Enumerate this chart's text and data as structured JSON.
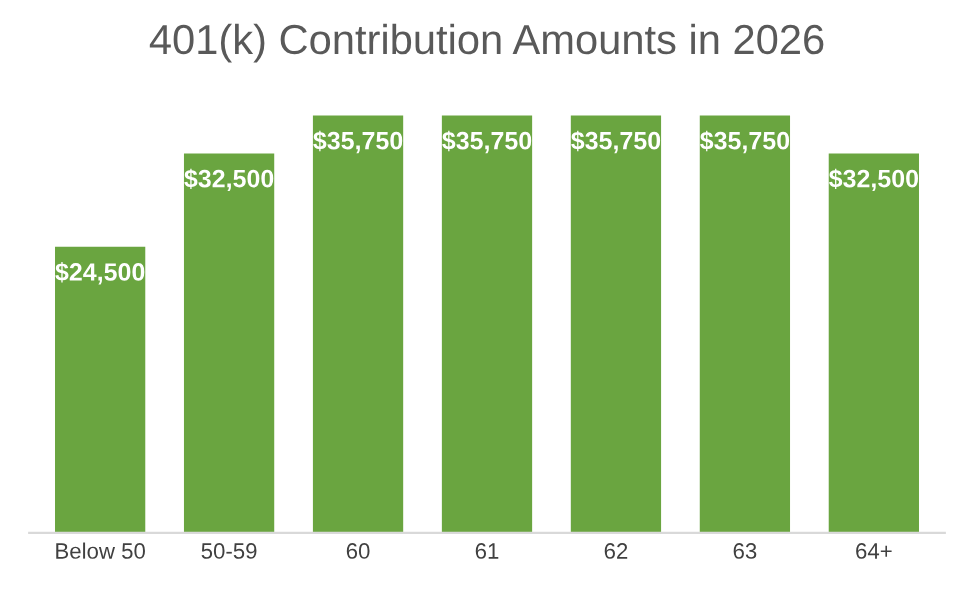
{
  "chart_data": {
    "type": "bar",
    "title": "401(k) Contribution Amounts in 2026",
    "categories": [
      "Below 50",
      "50-59",
      "60",
      "61",
      "62",
      "63",
      "64+"
    ],
    "values": [
      24500,
      32500,
      35750,
      35750,
      35750,
      35750,
      32500
    ],
    "value_labels": [
      "$24,500",
      "$32,500",
      "$35,750",
      "$35,750",
      "$35,750",
      "$35,750",
      "$32,500"
    ],
    "color": "#6aa540",
    "grid": false,
    "legend": false
  }
}
